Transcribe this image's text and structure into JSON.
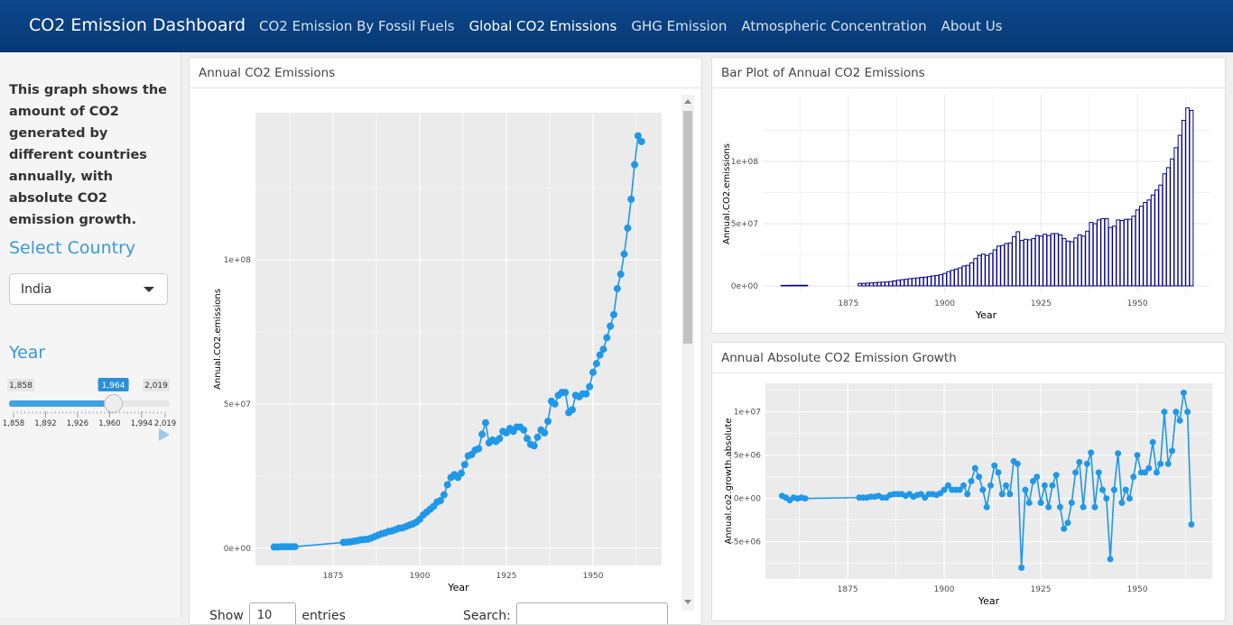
{
  "navbar": {
    "brand": "CO2 Emission Dashboard",
    "links": [
      "CO2 Emission By Fossil Fuels",
      "Global CO2 Emissions",
      "GHG Emission",
      "Atmospheric Concentration",
      "About Us"
    ],
    "active": 1
  },
  "sidebar": {
    "description": "This graph shows the amount of CO2 generated by different countries annually, with absolute CO2 emission growth.",
    "select_label": "Select Country",
    "select_value": "India",
    "year_label": "Year",
    "slider": {
      "min": {
        "value": 1858,
        "label": "1,858"
      },
      "max": {
        "value": 2019,
        "label": "2,019"
      },
      "value": {
        "value": 1964,
        "label": "1,964"
      },
      "ticks": [
        {
          "value": 1858,
          "label": "1,858"
        },
        {
          "value": 1892,
          "label": "1,892"
        },
        {
          "value": 1926,
          "label": "1,926"
        },
        {
          "value": 1960,
          "label": "1,960"
        },
        {
          "value": 1994,
          "label": "1,994"
        },
        {
          "value": 2019,
          "label": "2,019"
        }
      ]
    }
  },
  "table": {
    "show": "Show",
    "length": "10",
    "entries": "entries",
    "search": "Search:"
  },
  "chart_data": [
    {
      "type": "line",
      "title": "Annual CO2 Emissions",
      "theme": "grey",
      "xlabel": "Year",
      "ylabel": "Annual.CO2.emissions",
      "color": "#1f98e8",
      "xlim": [
        1852.6,
        1969.8
      ],
      "ylim": [
        -6000000,
        151000000
      ],
      "xticks": [
        1875,
        1900,
        1925,
        1950
      ],
      "yticks": [
        {
          "value": 0,
          "label": "0e+00"
        },
        {
          "value": 50000000,
          "label": "5e+07"
        },
        {
          "value": 100000000,
          "label": "1e+08"
        }
      ],
      "x": [
        1858,
        1859,
        1860,
        1861,
        1862,
        1863,
        1864,
        1878,
        1879,
        1880,
        1881,
        1882,
        1883,
        1884,
        1885,
        1886,
        1887,
        1888,
        1889,
        1890,
        1891,
        1892,
        1893,
        1894,
        1895,
        1896,
        1897,
        1898,
        1899,
        1900,
        1901,
        1902,
        1903,
        1904,
        1905,
        1906,
        1907,
        1908,
        1909,
        1910,
        1911,
        1912,
        1913,
        1914,
        1915,
        1916,
        1917,
        1918,
        1919,
        1920,
        1921,
        1922,
        1923,
        1924,
        1925,
        1926,
        1927,
        1928,
        1929,
        1930,
        1931,
        1932,
        1933,
        1934,
        1935,
        1936,
        1937,
        1938,
        1939,
        1940,
        1941,
        1942,
        1943,
        1944,
        1945,
        1946,
        1947,
        1948,
        1949,
        1950,
        1951,
        1952,
        1953,
        1954,
        1955,
        1956,
        1957,
        1958,
        1959,
        1960,
        1961,
        1962,
        1963,
        1964
      ],
      "values": [
        400000,
        400000,
        500000,
        500000,
        500000,
        500000,
        500000,
        2000000,
        2100000,
        2200000,
        2400000,
        2600000,
        2900000,
        3000000,
        3100000,
        3500000,
        4000000,
        4500000,
        5000000,
        5300000,
        5800000,
        6000000,
        6400000,
        6900000,
        7000000,
        7500000,
        8000000,
        8400000,
        9000000,
        10000000,
        11500000,
        12500000,
        13500000,
        14500000,
        16000000,
        16500000,
        18500000,
        22000000,
        24500000,
        25500000,
        24500000,
        26000000,
        29000000,
        32000000,
        32500000,
        34000000,
        34500000,
        39500000,
        43500000,
        36500000,
        37500000,
        37000000,
        38000000,
        40500000,
        40000000,
        41500000,
        40500000,
        42000000,
        42000000,
        41000000,
        38000000,
        36000000,
        35500000,
        38500000,
        41000000,
        40000000,
        44000000,
        51000000,
        50000000,
        53000000,
        54000000,
        54000000,
        47000000,
        48000000,
        53000000,
        52500000,
        53500000,
        53500000,
        56000000,
        61000000,
        64000000,
        67000000,
        69000000,
        73000000,
        77000000,
        81000000,
        90000000,
        95000000,
        102000000,
        111000000,
        121000000,
        133000000,
        143000000,
        141000000
      ]
    },
    {
      "type": "bar",
      "title": "Bar Plot of Annual CO2 Emissions",
      "theme": "minimal",
      "xlabel": "Year",
      "ylabel": "Annual.CO2.emissions",
      "color": "#00008b",
      "xlim": [
        1852.8,
        1968.7
      ],
      "ylim": [
        -5800000,
        153600000
      ],
      "xticks": [
        1875,
        1900,
        1925,
        1950
      ],
      "yticks": [
        {
          "value": 0,
          "label": "0e+00"
        },
        {
          "value": 50000000,
          "label": "5e+07"
        },
        {
          "value": 100000000,
          "label": "1e+08"
        }
      ],
      "x": [
        1858,
        1859,
        1860,
        1861,
        1862,
        1863,
        1864,
        1878,
        1879,
        1880,
        1881,
        1882,
        1883,
        1884,
        1885,
        1886,
        1887,
        1888,
        1889,
        1890,
        1891,
        1892,
        1893,
        1894,
        1895,
        1896,
        1897,
        1898,
        1899,
        1900,
        1901,
        1902,
        1903,
        1904,
        1905,
        1906,
        1907,
        1908,
        1909,
        1910,
        1911,
        1912,
        1913,
        1914,
        1915,
        1916,
        1917,
        1918,
        1919,
        1920,
        1921,
        1922,
        1923,
        1924,
        1925,
        1926,
        1927,
        1928,
        1929,
        1930,
        1931,
        1932,
        1933,
        1934,
        1935,
        1936,
        1937,
        1938,
        1939,
        1940,
        1941,
        1942,
        1943,
        1944,
        1945,
        1946,
        1947,
        1948,
        1949,
        1950,
        1951,
        1952,
        1953,
        1954,
        1955,
        1956,
        1957,
        1958,
        1959,
        1960,
        1961,
        1962,
        1963,
        1964
      ],
      "values": [
        400000,
        400000,
        500000,
        500000,
        500000,
        500000,
        500000,
        2000000,
        2100000,
        2200000,
        2400000,
        2600000,
        2900000,
        3000000,
        3100000,
        3500000,
        4000000,
        4500000,
        5000000,
        5300000,
        5800000,
        6000000,
        6400000,
        6900000,
        7000000,
        7500000,
        8000000,
        8400000,
        9000000,
        10000000,
        11500000,
        12500000,
        13500000,
        14500000,
        16000000,
        16500000,
        18500000,
        22000000,
        24500000,
        25500000,
        24500000,
        26000000,
        29000000,
        32000000,
        32500000,
        34000000,
        34500000,
        39500000,
        43500000,
        36500000,
        37500000,
        37000000,
        38000000,
        40500000,
        40000000,
        41500000,
        40500000,
        42000000,
        42000000,
        41000000,
        38000000,
        36000000,
        35500000,
        38500000,
        41000000,
        40000000,
        44000000,
        51000000,
        50000000,
        53000000,
        54000000,
        54000000,
        47000000,
        48000000,
        53000000,
        52500000,
        53500000,
        53500000,
        56000000,
        61000000,
        64000000,
        67000000,
        69000000,
        73000000,
        77000000,
        81000000,
        90000000,
        95000000,
        102000000,
        111000000,
        121000000,
        133000000,
        143000000,
        141000000
      ]
    },
    {
      "type": "line",
      "title": "Annual Absolute CO2 Emission Growth",
      "theme": "grey",
      "xlabel": "Year",
      "ylabel": "Annual.co2.growth.absolute",
      "color": "#1f98e8",
      "xlim": [
        1853.7,
        1969.4
      ],
      "ylim": [
        -9300000,
        13300000
      ],
      "xticks": [
        1875,
        1900,
        1925,
        1950
      ],
      "yticks": [
        {
          "value": -5000000,
          "label": "-5e+06"
        },
        {
          "value": 0,
          "label": "0e+00"
        },
        {
          "value": 5000000,
          "label": "5e+06"
        },
        {
          "value": 10000000,
          "label": "1e+07"
        }
      ],
      "x": [
        1858,
        1859,
        1860,
        1861,
        1862,
        1863,
        1864,
        1878,
        1879,
        1880,
        1881,
        1882,
        1883,
        1884,
        1885,
        1886,
        1887,
        1888,
        1889,
        1890,
        1891,
        1892,
        1893,
        1894,
        1895,
        1896,
        1897,
        1898,
        1899,
        1900,
        1901,
        1902,
        1903,
        1904,
        1905,
        1906,
        1907,
        1908,
        1909,
        1910,
        1911,
        1912,
        1913,
        1914,
        1915,
        1916,
        1917,
        1918,
        1919,
        1920,
        1921,
        1922,
        1923,
        1924,
        1925,
        1926,
        1927,
        1928,
        1929,
        1930,
        1931,
        1932,
        1933,
        1934,
        1935,
        1936,
        1937,
        1938,
        1939,
        1940,
        1941,
        1942,
        1943,
        1944,
        1945,
        1946,
        1947,
        1948,
        1949,
        1950,
        1951,
        1952,
        1953,
        1954,
        1955,
        1956,
        1957,
        1958,
        1959,
        1960,
        1961,
        1962,
        1963,
        1964
      ],
      "values": [
        300000,
        100000,
        -200000,
        100000,
        0,
        100000,
        0,
        100000,
        100000,
        100000,
        200000,
        200000,
        300000,
        100000,
        100000,
        400000,
        500000,
        500000,
        500000,
        300000,
        500000,
        200000,
        400000,
        500000,
        100000,
        500000,
        500000,
        400000,
        600000,
        1000000,
        1500000,
        1000000,
        1000000,
        1000000,
        1500000,
        500000,
        2000000,
        3500000,
        2500000,
        1000000,
        -1000000,
        1500000,
        3800000,
        3000000,
        500000,
        1500000,
        500000,
        4300000,
        4000000,
        -8000000,
        1000000,
        -500000,
        2000000,
        2500000,
        -500000,
        1500000,
        -1000000,
        1500000,
        2700000,
        -1000000,
        -3500000,
        -2800000,
        -500000,
        3000000,
        4200000,
        -1000000,
        4000000,
        5300000,
        -1000000,
        3000000,
        1000000,
        0,
        -7000000,
        1000000,
        5200000,
        -500000,
        1000000,
        0,
        2500000,
        5000000,
        3000000,
        3000000,
        3500000,
        6500000,
        3000000,
        4000000,
        10000000,
        4000000,
        5500000,
        10000000,
        9000000,
        12200000,
        10000000,
        -3000000
      ]
    }
  ]
}
